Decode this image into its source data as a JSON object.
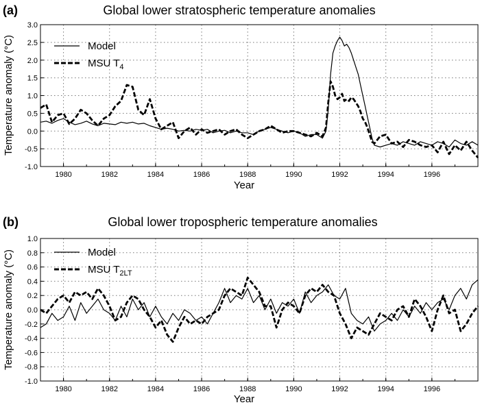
{
  "figure": {
    "panels": [
      {
        "id": "a",
        "label": "(a)",
        "title": "Global lower stratospheric temperature anomalies",
        "xlabel": "Year",
        "ylabel": "Temperature anomaly (°C)",
        "xlim": [
          1979,
          1998
        ],
        "ylim": [
          -1.0,
          3.0
        ],
        "yticks": [
          "3.0",
          "2.5",
          "2.0",
          "1.5",
          "1.0",
          "0.5",
          "0.0",
          "-0.5",
          "-1.0"
        ],
        "xticks": [
          "1980",
          "1982",
          "1984",
          "1986",
          "1988",
          "1990",
          "1992",
          "1994",
          "1996"
        ],
        "legend": {
          "model": "Model",
          "msu_base": "MSU T",
          "msu_sub": "4"
        }
      },
      {
        "id": "b",
        "label": "(b)",
        "title": "Global lower tropospheric temperature anomalies",
        "xlabel": "Year",
        "ylabel": "Temperature anomaly (°C)",
        "xlim": [
          1979,
          1998
        ],
        "ylim": [
          -1.0,
          1.0
        ],
        "yticks": [
          "1.0",
          "0.8",
          "0.6",
          "0.4",
          "0.2",
          "0.0",
          "-0.2",
          "-0.4",
          "-0.6",
          "-0.8",
          "-1.0"
        ],
        "xticks": [
          "1980",
          "1982",
          "1984",
          "1986",
          "1988",
          "1990",
          "1992",
          "1994",
          "1996"
        ],
        "legend": {
          "model": "Model",
          "msu_base": "MSU T",
          "msu_sub": "2LT"
        }
      }
    ]
  },
  "chart_data": [
    {
      "type": "line",
      "title": "Global lower stratospheric temperature anomalies",
      "xlabel": "Year",
      "ylabel": "Temperature anomaly (°C)",
      "xlim": [
        1979,
        1998
      ],
      "ylim": [
        -1.0,
        3.0
      ],
      "grid": true,
      "legend": "top-left",
      "series": [
        {
          "name": "Model",
          "style": "solid",
          "x": [
            1979.0,
            1979.25,
            1979.5,
            1979.75,
            1980.0,
            1980.25,
            1980.5,
            1980.75,
            1981.0,
            1981.25,
            1981.5,
            1981.75,
            1982.0,
            1982.25,
            1982.5,
            1982.75,
            1983.0,
            1983.25,
            1983.5,
            1983.75,
            1984.0,
            1984.25,
            1984.5,
            1984.75,
            1985.0,
            1985.25,
            1985.5,
            1985.75,
            1986.0,
            1986.25,
            1986.5,
            1986.75,
            1987.0,
            1987.25,
            1987.5,
            1987.75,
            1988.0,
            1988.25,
            1988.5,
            1988.75,
            1989.0,
            1989.25,
            1989.5,
            1989.75,
            1990.0,
            1990.25,
            1990.5,
            1990.75,
            1991.0,
            1991.25,
            1991.4,
            1991.5,
            1991.6,
            1991.7,
            1991.8,
            1991.9,
            1992.0,
            1992.1,
            1992.2,
            1992.3,
            1992.4,
            1992.5,
            1992.6,
            1992.7,
            1992.8,
            1992.9,
            1993.0,
            1993.1,
            1993.2,
            1993.3,
            1993.4,
            1993.5,
            1993.75,
            1994.0,
            1994.25,
            1994.5,
            1994.75,
            1995.0,
            1995.25,
            1995.5,
            1995.75,
            1996.0,
            1996.25,
            1996.5,
            1996.75,
            1997.0,
            1997.25,
            1997.5,
            1997.75,
            1998.0
          ],
          "y": [
            0.25,
            0.28,
            0.22,
            0.3,
            0.35,
            0.25,
            0.18,
            0.22,
            0.28,
            0.2,
            0.15,
            0.22,
            0.2,
            0.18,
            0.25,
            0.22,
            0.25,
            0.2,
            0.22,
            0.15,
            0.1,
            0.05,
            0.08,
            0.05,
            0.0,
            0.02,
            0.0,
            0.05,
            0.02,
            0.05,
            -0.05,
            0.0,
            0.02,
            -0.05,
            0.0,
            -0.05,
            -0.05,
            -0.1,
            0.0,
            0.05,
            0.1,
            0.05,
            0.0,
            -0.05,
            0.0,
            -0.05,
            -0.15,
            -0.1,
            -0.1,
            -0.2,
            0.0,
            0.6,
            1.6,
            2.2,
            2.4,
            2.55,
            2.65,
            2.55,
            2.4,
            2.45,
            2.35,
            2.2,
            2.0,
            1.8,
            1.6,
            1.3,
            1.0,
            0.7,
            0.4,
            0.1,
            -0.2,
            -0.4,
            -0.45,
            -0.4,
            -0.35,
            -0.4,
            -0.3,
            -0.35,
            -0.4,
            -0.3,
            -0.35,
            -0.4,
            -0.3,
            -0.35,
            -0.45,
            -0.25,
            -0.35,
            -0.4,
            -0.3,
            -0.4
          ]
        },
        {
          "name": "MSU T4",
          "style": "dashed",
          "x": [
            1979.0,
            1979.25,
            1979.5,
            1979.75,
            1980.0,
            1980.25,
            1980.5,
            1980.75,
            1981.0,
            1981.25,
            1981.5,
            1981.75,
            1982.0,
            1982.25,
            1982.5,
            1982.75,
            1983.0,
            1983.25,
            1983.5,
            1983.75,
            1984.0,
            1984.25,
            1984.5,
            1984.75,
            1985.0,
            1985.25,
            1985.5,
            1985.75,
            1986.0,
            1986.25,
            1986.5,
            1986.75,
            1987.0,
            1987.25,
            1987.5,
            1987.75,
            1988.0,
            1988.25,
            1988.5,
            1988.75,
            1989.0,
            1989.25,
            1989.5,
            1989.75,
            1990.0,
            1990.25,
            1990.5,
            1990.75,
            1991.0,
            1991.25,
            1991.4,
            1991.5,
            1991.6,
            1991.7,
            1991.8,
            1991.9,
            1992.0,
            1992.1,
            1992.2,
            1992.3,
            1992.4,
            1992.5,
            1992.6,
            1992.7,
            1992.8,
            1992.9,
            1993.0,
            1993.1,
            1993.2,
            1993.3,
            1993.4,
            1993.5,
            1993.75,
            1994.0,
            1994.25,
            1994.5,
            1994.75,
            1995.0,
            1995.25,
            1995.5,
            1995.75,
            1996.0,
            1996.25,
            1996.5,
            1996.75,
            1997.0,
            1997.25,
            1997.5,
            1997.75,
            1998.0
          ],
          "y": [
            0.65,
            0.75,
            0.25,
            0.45,
            0.5,
            0.2,
            0.35,
            0.6,
            0.5,
            0.3,
            0.15,
            0.35,
            0.45,
            0.7,
            0.85,
            1.3,
            1.25,
            0.6,
            0.45,
            0.9,
            0.35,
            0.05,
            0.15,
            0.25,
            -0.2,
            0.0,
            0.1,
            -0.1,
            0.05,
            -0.05,
            0.0,
            0.05,
            -0.1,
            0.0,
            0.05,
            -0.1,
            -0.2,
            -0.1,
            0.0,
            0.05,
            0.15,
            0.05,
            -0.05,
            0.0,
            0.0,
            -0.05,
            -0.1,
            -0.15,
            -0.05,
            -0.15,
            0.1,
            0.8,
            1.4,
            1.25,
            1.0,
            0.9,
            0.95,
            1.05,
            0.85,
            0.9,
            0.85,
            0.95,
            0.9,
            0.8,
            0.7,
            0.55,
            0.35,
            0.25,
            0.1,
            -0.1,
            -0.3,
            -0.35,
            -0.15,
            -0.1,
            -0.35,
            -0.3,
            -0.45,
            -0.25,
            -0.3,
            -0.4,
            -0.45,
            -0.4,
            -0.6,
            -0.3,
            -0.65,
            -0.4,
            -0.55,
            -0.3,
            -0.55,
            -0.75
          ]
        }
      ]
    },
    {
      "type": "line",
      "title": "Global lower tropospheric temperature anomalies",
      "xlabel": "Year",
      "ylabel": "Temperature anomaly (°C)",
      "xlim": [
        1979,
        1998
      ],
      "ylim": [
        -1.0,
        1.0
      ],
      "grid": true,
      "legend": "top-left",
      "series": [
        {
          "name": "Model",
          "style": "solid",
          "x": [
            1979.0,
            1979.25,
            1979.5,
            1979.75,
            1980.0,
            1980.25,
            1980.5,
            1980.75,
            1981.0,
            1981.25,
            1981.5,
            1981.75,
            1982.0,
            1982.25,
            1982.5,
            1982.75,
            1983.0,
            1983.25,
            1983.5,
            1983.75,
            1984.0,
            1984.25,
            1984.5,
            1984.75,
            1985.0,
            1985.25,
            1985.5,
            1985.75,
            1986.0,
            1986.25,
            1986.5,
            1986.75,
            1987.0,
            1987.25,
            1987.5,
            1987.75,
            1988.0,
            1988.25,
            1988.5,
            1988.75,
            1989.0,
            1989.25,
            1989.5,
            1989.75,
            1990.0,
            1990.25,
            1990.5,
            1990.75,
            1991.0,
            1991.25,
            1991.5,
            1991.75,
            1992.0,
            1992.25,
            1992.5,
            1992.75,
            1993.0,
            1993.25,
            1993.5,
            1993.75,
            1994.0,
            1994.25,
            1994.5,
            1994.75,
            1995.0,
            1995.25,
            1995.5,
            1995.75,
            1996.0,
            1996.25,
            1996.5,
            1996.75,
            1997.0,
            1997.25,
            1997.5,
            1997.75,
            1998.0
          ],
          "y": [
            -0.25,
            -0.2,
            -0.05,
            -0.15,
            -0.1,
            0.05,
            -0.15,
            0.1,
            -0.05,
            0.05,
            0.15,
            0.0,
            -0.05,
            -0.15,
            0.05,
            -0.1,
            0.15,
            0.0,
            0.1,
            -0.1,
            0.05,
            -0.1,
            -0.2,
            -0.05,
            -0.15,
            0.0,
            -0.05,
            -0.15,
            -0.1,
            -0.2,
            -0.05,
            0.1,
            0.3,
            0.1,
            0.2,
            0.15,
            0.3,
            0.1,
            0.2,
            0.0,
            0.15,
            -0.05,
            0.1,
            0.05,
            0.15,
            -0.05,
            0.25,
            0.1,
            0.2,
            0.25,
            0.35,
            0.2,
            0.15,
            0.3,
            -0.05,
            -0.15,
            -0.2,
            -0.1,
            -0.3,
            -0.2,
            -0.15,
            -0.05,
            -0.15,
            0.0,
            -0.1,
            0.05,
            -0.05,
            0.1,
            0.0,
            0.1,
            0.15,
            0.0,
            0.2,
            0.3,
            0.15,
            0.35,
            0.42
          ]
        },
        {
          "name": "MSU T2LT",
          "style": "dashed",
          "x": [
            1979.0,
            1979.25,
            1979.5,
            1979.75,
            1980.0,
            1980.25,
            1980.5,
            1980.75,
            1981.0,
            1981.25,
            1981.5,
            1981.75,
            1982.0,
            1982.25,
            1982.5,
            1982.75,
            1983.0,
            1983.25,
            1983.5,
            1983.75,
            1984.0,
            1984.25,
            1984.5,
            1984.75,
            1985.0,
            1985.25,
            1985.5,
            1985.75,
            1986.0,
            1986.25,
            1986.5,
            1986.75,
            1987.0,
            1987.25,
            1987.5,
            1987.75,
            1988.0,
            1988.25,
            1988.5,
            1988.75,
            1989.0,
            1989.25,
            1989.5,
            1989.75,
            1990.0,
            1990.25,
            1990.5,
            1990.75,
            1991.0,
            1991.25,
            1991.5,
            1991.75,
            1992.0,
            1992.25,
            1992.5,
            1992.75,
            1993.0,
            1993.25,
            1993.5,
            1993.75,
            1994.0,
            1994.25,
            1994.5,
            1994.75,
            1995.0,
            1995.25,
            1995.5,
            1995.75,
            1996.0,
            1996.25,
            1996.5,
            1996.75,
            1997.0,
            1997.25,
            1997.5,
            1997.75,
            1998.0
          ],
          "y": [
            0.0,
            -0.05,
            0.05,
            0.15,
            0.2,
            0.1,
            0.25,
            0.2,
            0.25,
            0.15,
            0.3,
            0.2,
            0.05,
            -0.15,
            -0.1,
            0.1,
            0.2,
            0.15,
            0.0,
            -0.1,
            -0.25,
            -0.15,
            -0.35,
            -0.45,
            -0.25,
            -0.1,
            -0.2,
            -0.15,
            -0.2,
            -0.1,
            -0.05,
            0.0,
            0.2,
            0.3,
            0.25,
            0.2,
            0.45,
            0.35,
            0.25,
            0.05,
            0.05,
            -0.25,
            0.0,
            0.1,
            0.05,
            -0.05,
            0.2,
            0.3,
            0.25,
            0.35,
            0.25,
            0.2,
            -0.05,
            -0.2,
            -0.4,
            -0.25,
            -0.3,
            -0.35,
            -0.2,
            -0.05,
            -0.1,
            -0.15,
            0.0,
            0.05,
            -0.1,
            0.15,
            0.05,
            -0.1,
            -0.3,
            0.0,
            0.2,
            -0.05,
            0.0,
            -0.3,
            -0.2,
            -0.05,
            0.05
          ]
        }
      ]
    }
  ]
}
